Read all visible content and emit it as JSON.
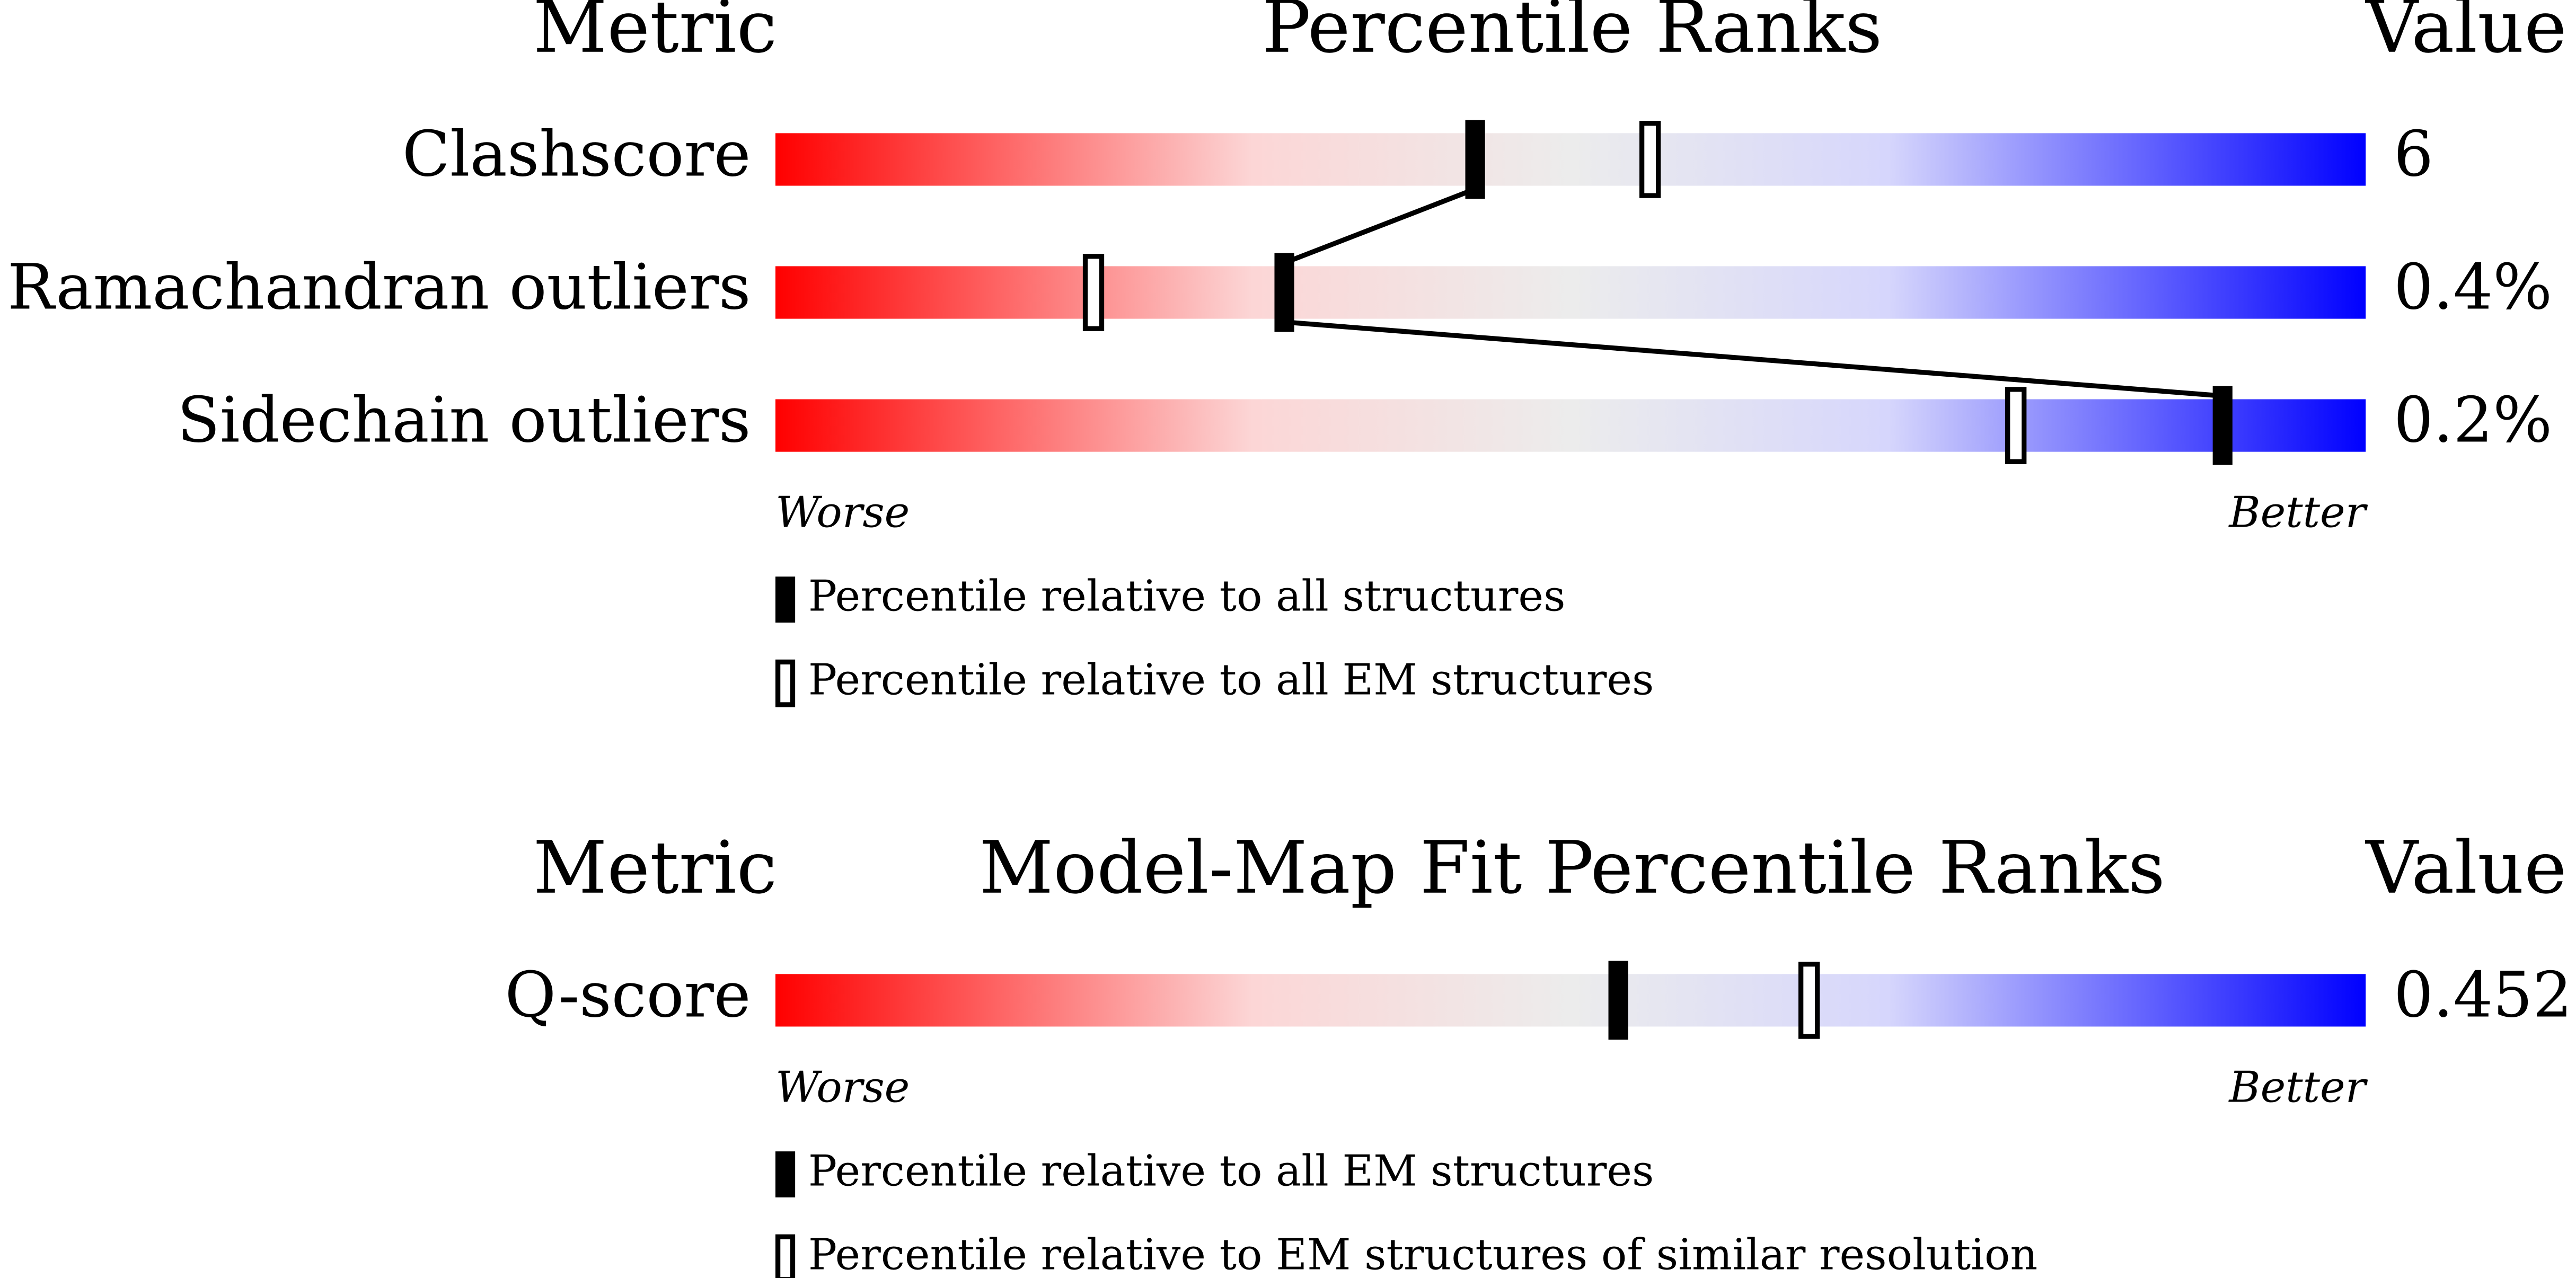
{
  "panels": [
    {
      "headers": {
        "metric": "Metric",
        "title": "Percentile Ranks",
        "value": "Value"
      },
      "xlim": [
        0,
        100
      ],
      "rows": [
        {
          "metric": "Clashscore",
          "value": "6",
          "percentile_all": 44,
          "percentile_em": 55
        },
        {
          "metric": "Ramachandran outliers",
          "value": "0.4%",
          "percentile_all": 32,
          "percentile_em": 20
        },
        {
          "metric": "Sidechain outliers",
          "value": "0.2%",
          "percentile_all": 91,
          "percentile_em": 78
        }
      ],
      "worse": "Worse",
      "better": "Better",
      "legend": {
        "filled": "Percentile relative to all structures",
        "open": "Percentile relative to all EM structures"
      }
    },
    {
      "headers": {
        "metric": "Metric",
        "title": "Model-Map Fit Percentile Ranks",
        "value": "Value"
      },
      "xlim": [
        0,
        100
      ],
      "rows": [
        {
          "metric": "Q-score",
          "value": "0.452",
          "percentile_all": 53,
          "percentile_em": 65
        }
      ],
      "worse": "Worse",
      "better": "Better",
      "legend": {
        "filled": "Percentile relative to all EM structures",
        "open": "Percentile relative to EM structures of similar resolution"
      }
    }
  ]
}
